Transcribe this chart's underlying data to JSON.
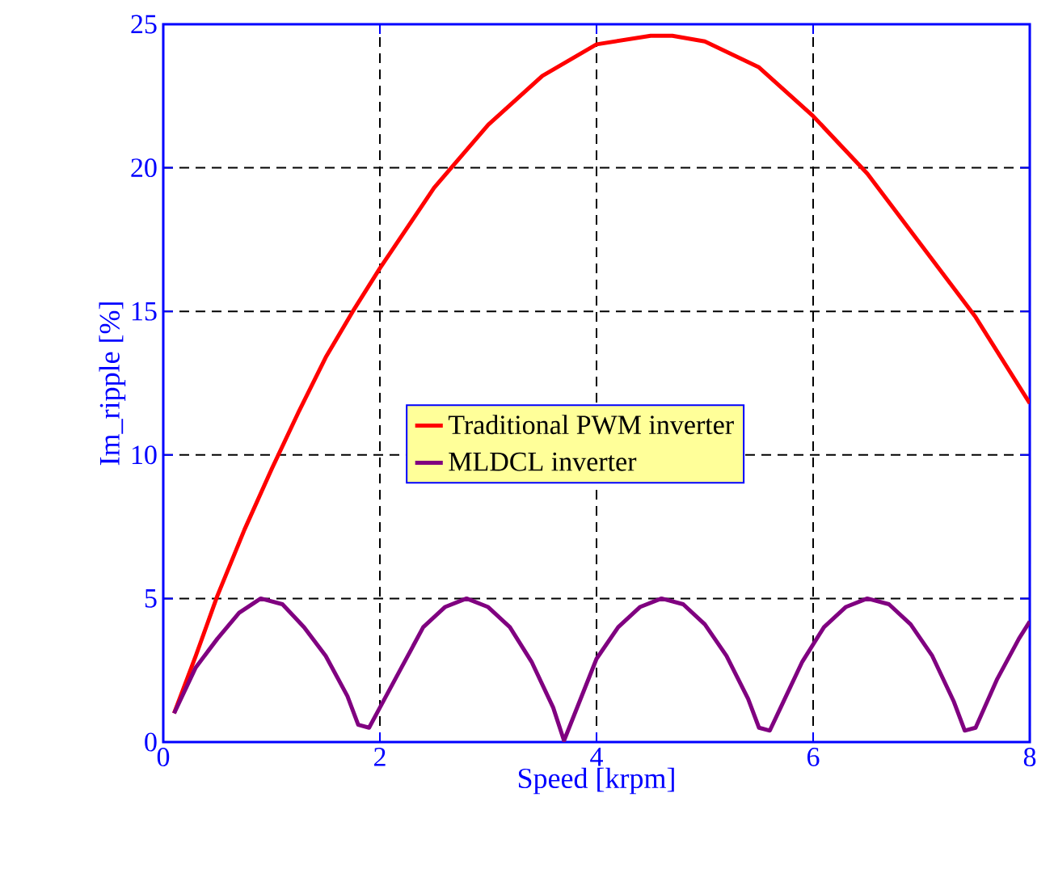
{
  "chart_data": {
    "type": "line",
    "xlabel": "Speed [krpm]",
    "ylabel": "Im_ripple [%]",
    "xlim": [
      0,
      8
    ],
    "ylim": [
      0,
      25
    ],
    "xticks": [
      0,
      2,
      4,
      6,
      8
    ],
    "yticks": [
      0,
      5,
      10,
      15,
      20,
      25
    ],
    "grid": true,
    "legend": "right",
    "marker": "none",
    "line_style": "solid",
    "series": [
      {
        "name": "Traditional PWM inverter",
        "color": "#ff0000",
        "x": [
          0.1,
          0.3,
          0.5,
          0.75,
          1,
          1.25,
          1.5,
          1.75,
          2,
          2.5,
          3,
          3.5,
          4,
          4.5,
          4.7,
          5,
          5.5,
          6,
          6.5,
          7,
          7.5,
          8
        ],
        "values": [
          1.0,
          3.0,
          5.1,
          7.4,
          9.5,
          11.5,
          13.4,
          15.0,
          16.5,
          19.3,
          21.5,
          23.2,
          24.3,
          24.6,
          24.6,
          24.4,
          23.5,
          21.8,
          19.8,
          17.3,
          14.8,
          11.8
        ]
      },
      {
        "name": "MLDCL inverter",
        "color": "#800080",
        "x": [
          0.1,
          0.3,
          0.5,
          0.7,
          0.9,
          1.1,
          1.3,
          1.5,
          1.7,
          1.8,
          1.9,
          2.0,
          2.2,
          2.4,
          2.6,
          2.8,
          3.0,
          3.2,
          3.4,
          3.6,
          3.7,
          3.8,
          4.0,
          4.2,
          4.4,
          4.6,
          4.8,
          5.0,
          5.2,
          5.4,
          5.5,
          5.6,
          5.7,
          5.9,
          6.1,
          6.3,
          6.5,
          6.7,
          6.9,
          7.1,
          7.3,
          7.4,
          7.5,
          7.7,
          7.9,
          8.0
        ],
        "values": [
          1.0,
          2.6,
          3.6,
          4.5,
          5.0,
          4.8,
          4.0,
          3.0,
          1.6,
          0.6,
          0.5,
          1.2,
          2.6,
          4.0,
          4.7,
          5.0,
          4.7,
          4.0,
          2.8,
          1.2,
          0.05,
          1.0,
          2.9,
          4.0,
          4.7,
          5.0,
          4.8,
          4.1,
          3.0,
          1.5,
          0.5,
          0.4,
          1.2,
          2.8,
          4.0,
          4.7,
          5.0,
          4.8,
          4.1,
          3.0,
          1.4,
          0.4,
          0.5,
          2.2,
          3.6,
          4.2
        ]
      }
    ]
  }
}
